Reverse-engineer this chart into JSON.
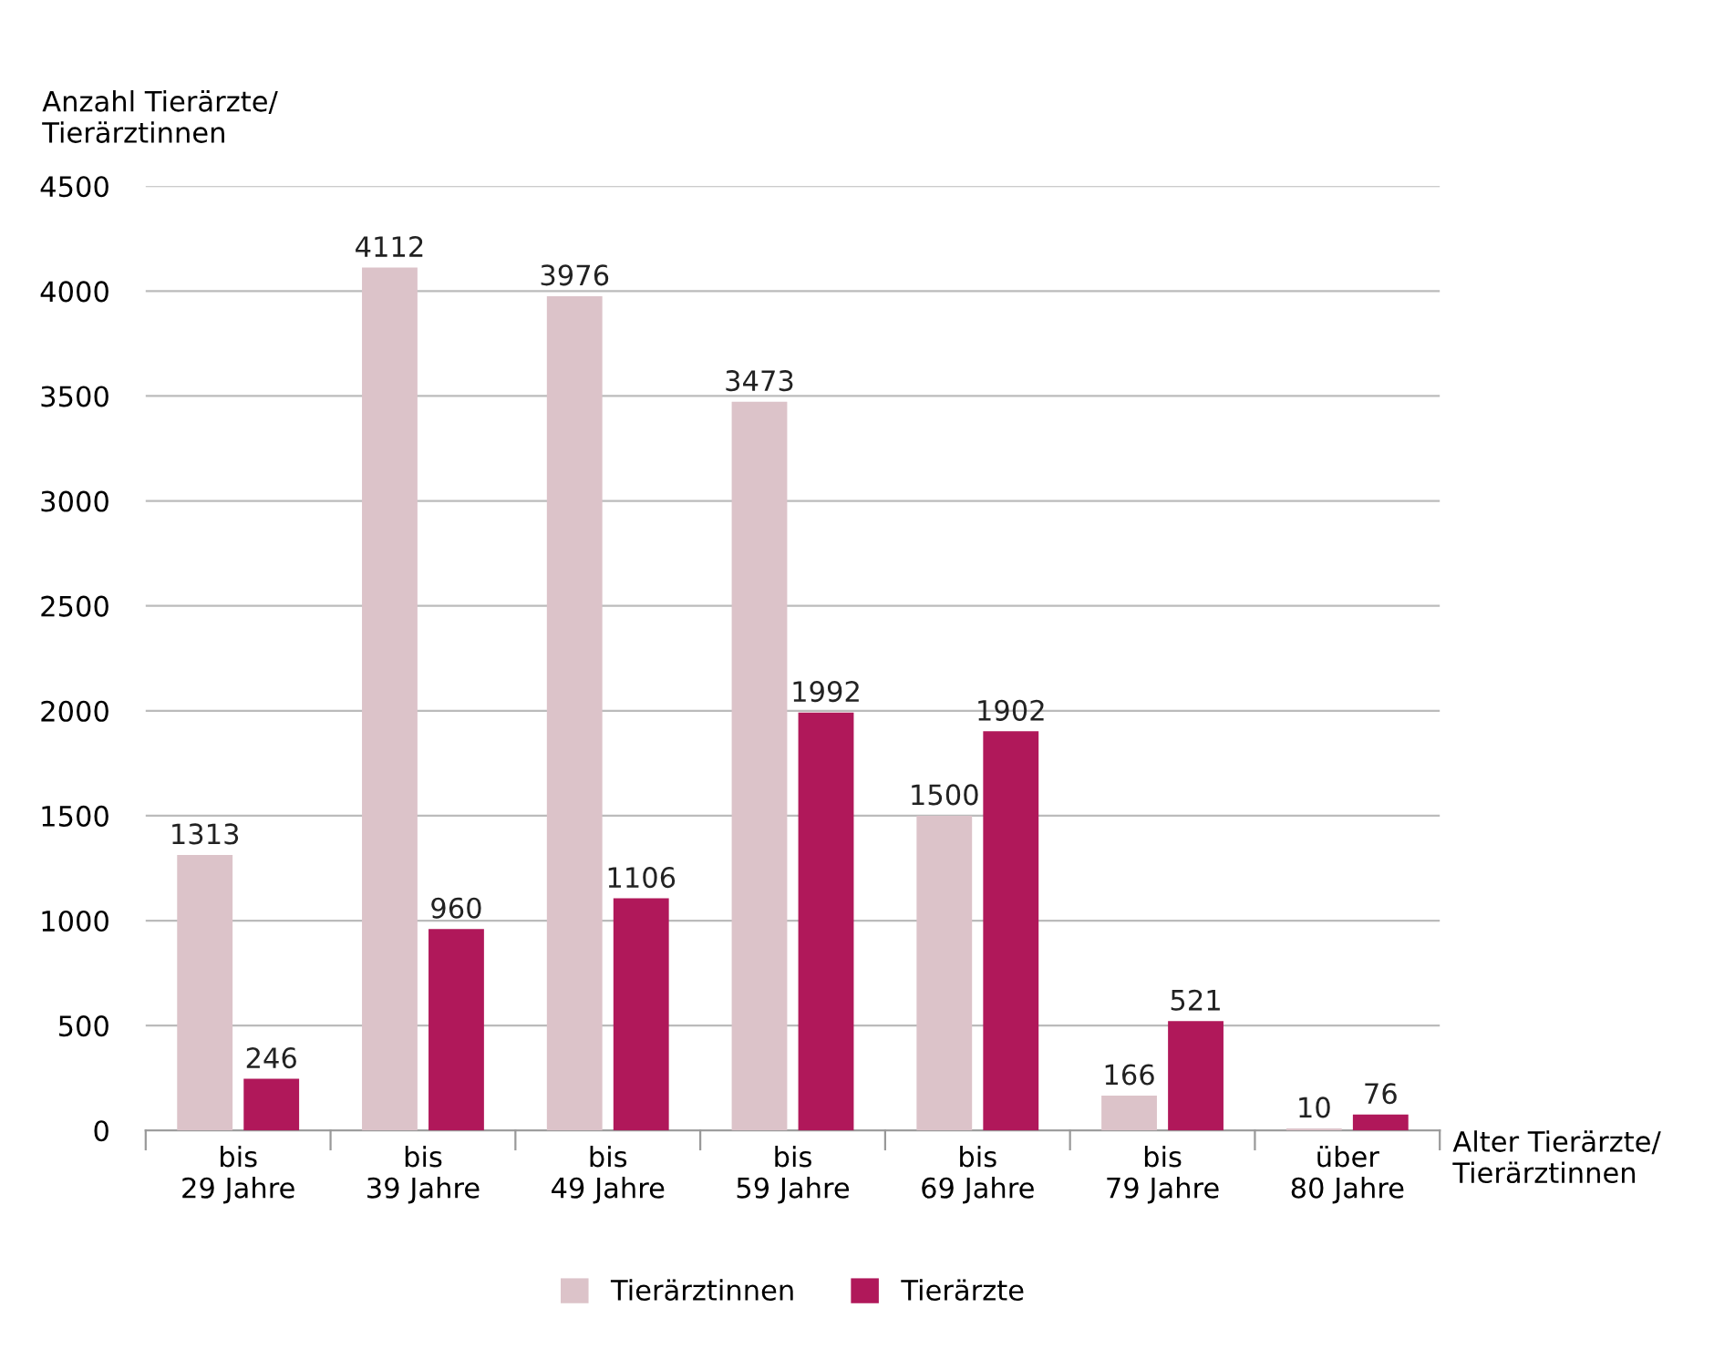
{
  "chart_data": {
    "type": "bar",
    "ylabel": "Anzahl Tierärzte/\nTierärztinnen",
    "xlabel": "Alter Tierärzte/\nTierärztinnen",
    "categories": [
      "bis\n29 Jahre",
      "bis\n39 Jahre",
      "bis\n49 Jahre",
      "bis\n59 Jahre",
      "bis\n69 Jahre",
      "bis\n79 Jahre",
      "über\n80 Jahre"
    ],
    "series": [
      {
        "name": "Tierärztinnen",
        "color": "#dcc3c9",
        "values": [
          1313,
          4112,
          3976,
          3473,
          1500,
          166,
          10
        ]
      },
      {
        "name": "Tierärzte",
        "color": "#b0185a",
        "values": [
          246,
          960,
          1106,
          1992,
          1902,
          521,
          76
        ]
      }
    ],
    "ylim": [
      0,
      4500
    ],
    "yticks": [
      0,
      500,
      1000,
      1500,
      2000,
      2500,
      3000,
      3500,
      4000,
      4500
    ],
    "grid": "y",
    "legend": "bottom",
    "data_labels": true
  }
}
